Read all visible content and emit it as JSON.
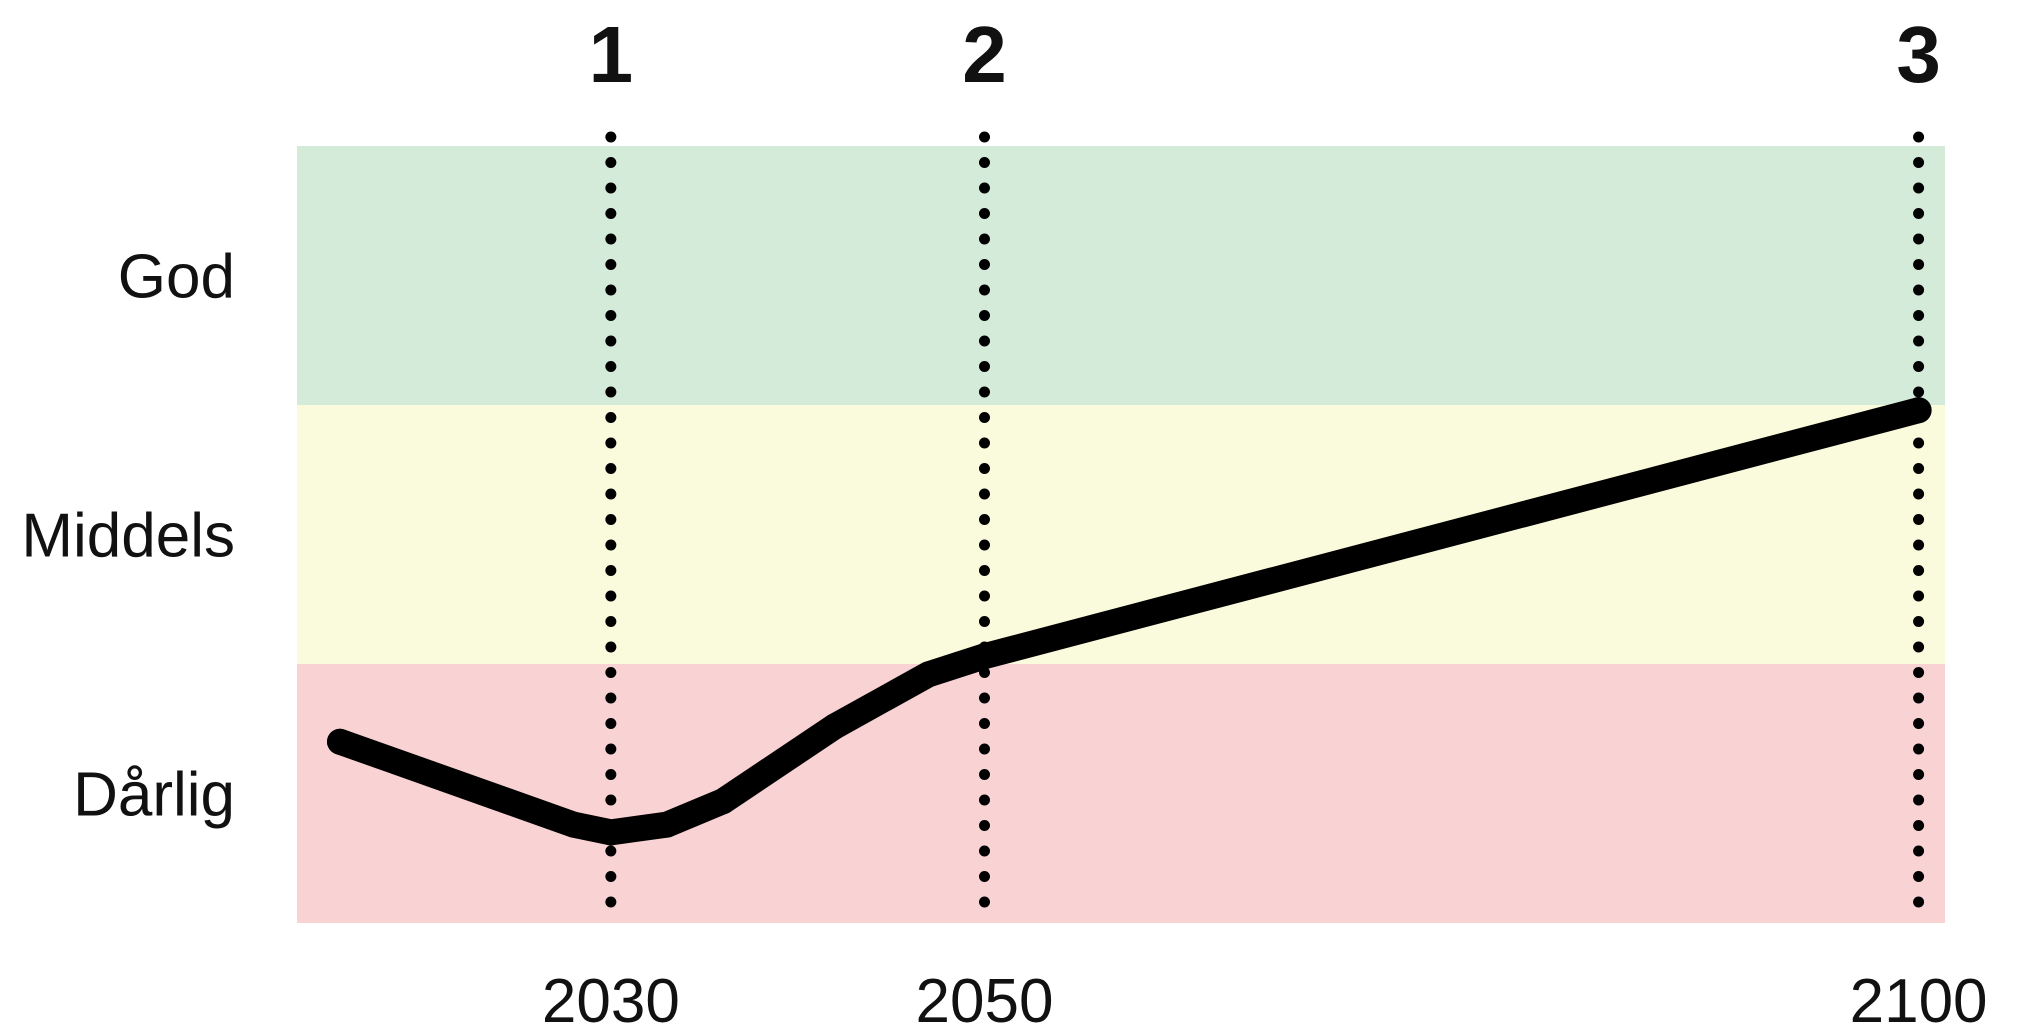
{
  "chart_data": {
    "type": "line",
    "title": "",
    "xlabel": "",
    "ylabel": "",
    "xlim": [
      2013.2,
      2101.2
    ],
    "ylim": [
      0,
      3
    ],
    "grid": false,
    "legend": "none",
    "bands": [
      {
        "label": "God",
        "from": 2,
        "to": 3,
        "color": "#d5ebda"
      },
      {
        "label": "Middels",
        "from": 1,
        "to": 2,
        "color": "#fafadc"
      },
      {
        "label": "Dårlig",
        "from": 0,
        "to": 1,
        "color": "#f9d3d4"
      }
    ],
    "markers": [
      {
        "label": "1",
        "year": 2030,
        "tick": "2030"
      },
      {
        "label": "2",
        "year": 2050,
        "tick": "2050"
      },
      {
        "label": "3",
        "year": 2100,
        "tick": "2100"
      }
    ],
    "series": [
      {
        "color": "#000000",
        "points": [
          {
            "x": 2015.5,
            "y": 0.7
          },
          {
            "x": 2028,
            "y": 0.38
          },
          {
            "x": 2030,
            "y": 0.35
          },
          {
            "x": 2033,
            "y": 0.38
          },
          {
            "x": 2036,
            "y": 0.47
          },
          {
            "x": 2042,
            "y": 0.76
          },
          {
            "x": 2047,
            "y": 0.96
          },
          {
            "x": 2050,
            "y": 1.03
          },
          {
            "x": 2100,
            "y": 1.98
          }
        ]
      }
    ]
  }
}
